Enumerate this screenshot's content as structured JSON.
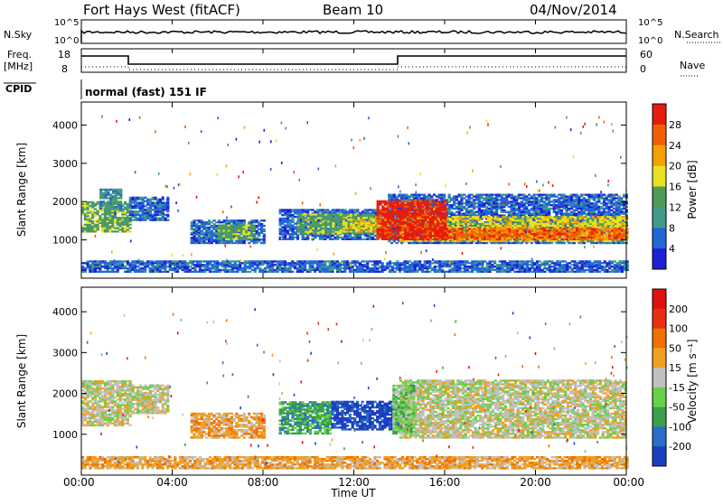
{
  "header": {
    "station": "Fort Hays West (fitACF)",
    "beam": "Beam 10",
    "date": "04/Nov/2014"
  },
  "status_panels": {
    "nsky_label": "N.Sky",
    "nsky_ticks": [
      "10^5",
      "10^0"
    ],
    "nsearch_label": "N.Search",
    "nsearch_ticks": [
      "10^5",
      "10^0"
    ],
    "freq_label": "Freq.",
    "freq_unit": "[MHz]",
    "freq_ticks": [
      "18",
      "8"
    ],
    "nave_label": "Nave",
    "nave_ticks": [
      "60",
      "0"
    ],
    "cpid_label": "CPID",
    "cpid_value": "normal (fast) 151 IF"
  },
  "time_axis": {
    "label": "Time UT",
    "ticks": [
      "00:00",
      "04:00",
      "08:00",
      "12:00",
      "16:00",
      "20:00",
      "00:00"
    ]
  },
  "colors": {
    "power_scale": [
      "#1f1fd6",
      "#2466d8",
      "#3f9c8c",
      "#4f9a58",
      "#e8e020",
      "#f5a000",
      "#f06000",
      "#e81b0f"
    ],
    "velocity_scale": [
      "#1a3fbf",
      "#2a6ec8",
      "#3aa04a",
      "#6ad04a",
      "#c0c0c0",
      "#f0a020",
      "#f07000",
      "#e83010",
      "#e01010"
    ]
  },
  "chart_data": [
    {
      "type": "heatmap",
      "name": "power-panel",
      "xlabel": "",
      "ylabel": "Slant Range [km]",
      "xlim": [
        0,
        24
      ],
      "ylim": [
        0,
        4600
      ],
      "yticks": [
        "1000",
        "2000",
        "3000",
        "4000"
      ],
      "colorbar_label": "Power [dB]",
      "colorbar_ticks": [
        "28",
        "24",
        "20",
        "16",
        "12",
        "8",
        "4"
      ],
      "regions": [
        {
          "t0": 0.0,
          "t1": 2.1,
          "r0": 1200,
          "r1": 2000,
          "level": 3
        },
        {
          "t0": 0.8,
          "t1": 1.7,
          "r0": 1800,
          "r1": 2300,
          "level": 2
        },
        {
          "t0": 2.1,
          "t1": 3.8,
          "r0": 1500,
          "r1": 2100,
          "level": 1
        },
        {
          "t0": 4.8,
          "t1": 8.0,
          "r0": 900,
          "r1": 1500,
          "level": 1
        },
        {
          "t0": 6.0,
          "t1": 7.6,
          "r0": 1000,
          "r1": 1400,
          "level": 3
        },
        {
          "t0": 8.7,
          "t1": 14.0,
          "r0": 1000,
          "r1": 1800,
          "level": 1
        },
        {
          "t0": 9.5,
          "t1": 13.8,
          "r0": 1150,
          "r1": 1650,
          "level": 3
        },
        {
          "t0": 11.5,
          "t1": 14.0,
          "r0": 1200,
          "r1": 1600,
          "level": 4
        },
        {
          "t0": 13.5,
          "t1": 24.0,
          "r0": 900,
          "r1": 2200,
          "level": 1
        },
        {
          "t0": 14.0,
          "t1": 24.0,
          "r0": 950,
          "r1": 1600,
          "level": 4
        },
        {
          "t0": 15.5,
          "t1": 24.0,
          "r0": 1000,
          "r1": 1300,
          "level": 6
        },
        {
          "t0": 13.0,
          "t1": 16.0,
          "r0": 1000,
          "r1": 2000,
          "level": 7
        },
        {
          "t0": 0.0,
          "t1": 24.0,
          "r0": 150,
          "r1": 450,
          "level": 1
        }
      ]
    },
    {
      "type": "heatmap",
      "name": "velocity-panel",
      "xlabel": "Time UT",
      "ylabel": "Slant Range [km]",
      "xlim": [
        0,
        24
      ],
      "ylim": [
        0,
        4600
      ],
      "yticks": [
        "1000",
        "2000",
        "3000",
        "4000"
      ],
      "colorbar_label": "Velocity [m s⁻¹]",
      "colorbar_ticks": [
        "200",
        "100",
        "50",
        "15",
        "-15",
        "-50",
        "-100",
        "-200"
      ],
      "regions": [
        {
          "t0": 0.0,
          "t1": 2.1,
          "r0": 1200,
          "r1": 2300,
          "level": 4
        },
        {
          "t0": 2.1,
          "t1": 3.8,
          "r0": 1500,
          "r1": 2200,
          "level": 4
        },
        {
          "t0": 4.8,
          "t1": 8.0,
          "r0": 900,
          "r1": 1500,
          "level": 5
        },
        {
          "t0": 8.7,
          "t1": 11.0,
          "r0": 1000,
          "r1": 1800,
          "level": 2
        },
        {
          "t0": 11.0,
          "t1": 14.0,
          "r0": 1100,
          "r1": 1800,
          "level": 0
        },
        {
          "t0": 14.0,
          "t1": 24.0,
          "r0": 900,
          "r1": 2300,
          "level": 4
        },
        {
          "t0": 13.7,
          "t1": 14.6,
          "r0": 1000,
          "r1": 2200,
          "level": 3
        },
        {
          "t0": 0.0,
          "t1": 24.0,
          "r0": 150,
          "r1": 450,
          "level": 5
        }
      ]
    }
  ]
}
